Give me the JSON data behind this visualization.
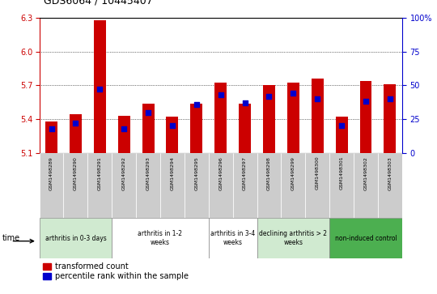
{
  "title": "GDS6064 / 10445407",
  "samples": [
    "GSM1498289",
    "GSM1498290",
    "GSM1498291",
    "GSM1498292",
    "GSM1498293",
    "GSM1498294",
    "GSM1498295",
    "GSM1498296",
    "GSM1498297",
    "GSM1498298",
    "GSM1498299",
    "GSM1498300",
    "GSM1498301",
    "GSM1498302",
    "GSM1498303"
  ],
  "transformed_count": [
    5.38,
    5.44,
    6.28,
    5.43,
    5.54,
    5.42,
    5.54,
    5.72,
    5.54,
    5.7,
    5.72,
    5.76,
    5.42,
    5.74,
    5.71
  ],
  "percentile_rank": [
    18,
    22,
    47,
    18,
    30,
    20,
    36,
    43,
    37,
    42,
    44,
    40,
    20,
    38,
    40
  ],
  "ylim_left": [
    5.1,
    6.3
  ],
  "ylim_right": [
    0,
    100
  ],
  "yticks_left": [
    5.1,
    5.4,
    5.7,
    6.0,
    6.3
  ],
  "yticks_right": [
    0,
    25,
    50,
    75,
    100
  ],
  "groups": [
    {
      "label": "arthritis in 0-3 days",
      "indices": [
        0,
        1,
        2
      ],
      "color": "#d0ead0"
    },
    {
      "label": "arthritis in 1-2\nweeks",
      "indices": [
        3,
        4,
        5,
        6
      ],
      "color": "#ffffff"
    },
    {
      "label": "arthritis in 3-4\nweeks",
      "indices": [
        7,
        8
      ],
      "color": "#ffffff"
    },
    {
      "label": "declining arthritis > 2\nweeks",
      "indices": [
        9,
        10,
        11
      ],
      "color": "#d0ead0"
    },
    {
      "label": "non-induced control",
      "indices": [
        12,
        13,
        14
      ],
      "color": "#4caf50"
    }
  ],
  "bar_color_red": "#cc0000",
  "bar_color_blue": "#0000cc",
  "bar_width": 0.5,
  "grid_color": "#000000",
  "left_axis_color": "#cc0000",
  "right_axis_color": "#0000cc",
  "sample_box_color": "#cccccc"
}
